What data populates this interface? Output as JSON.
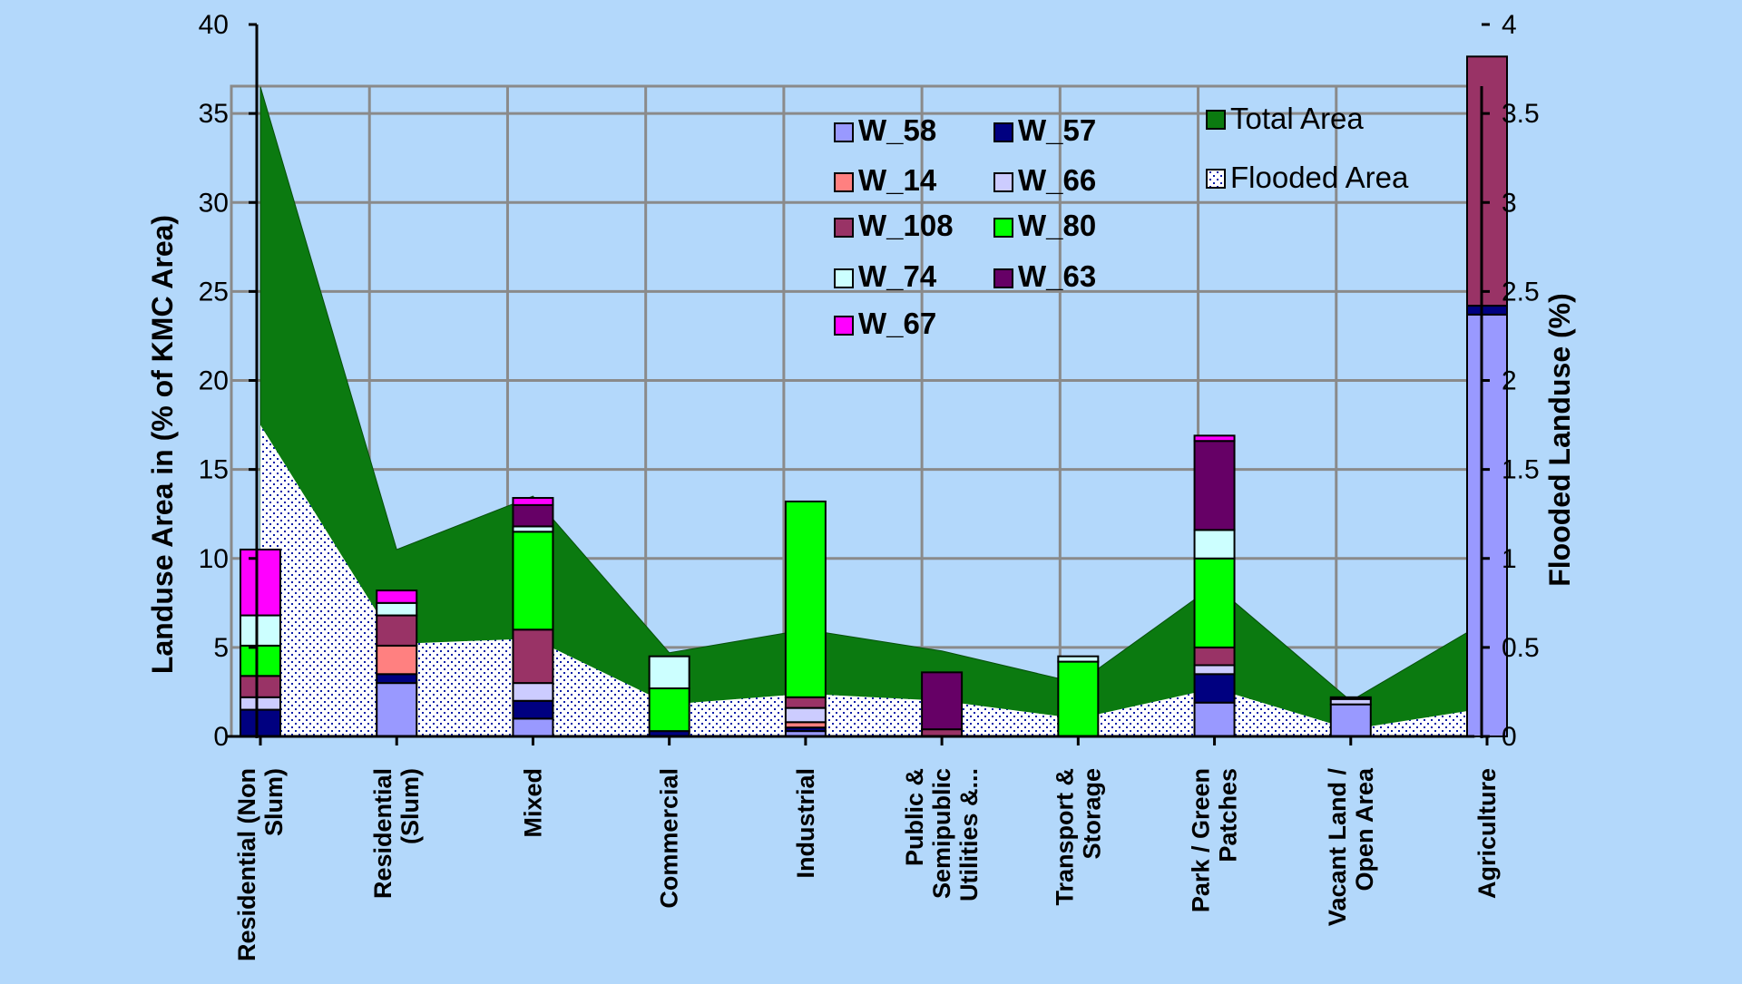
{
  "chart_data": {
    "type": "bar",
    "subtype": "stacked-bar-with-area",
    "title": "",
    "ylabel": "Landuse Area in (% of KMC Area)",
    "y2label": "Flooded Landuse (%)",
    "ylim": [
      0,
      40
    ],
    "y2lim": [
      0,
      4
    ],
    "yticks": [
      "0",
      "5",
      "10",
      "15",
      "20",
      "25",
      "30",
      "35",
      "40"
    ],
    "y2ticks": [
      "0",
      "0.5",
      "1",
      "1.5",
      "2",
      "2.5",
      "3",
      "3.5",
      "4"
    ],
    "grid": true,
    "categories": [
      [
        "Residential (Non",
        "Slum)"
      ],
      [
        "Residential",
        "(Slum)"
      ],
      [
        "Mixed"
      ],
      [
        "Commercial"
      ],
      [
        "Industrial"
      ],
      [
        "Public &",
        "Semipublic",
        "Utilities &..."
      ],
      [
        "Transport &",
        "Storage"
      ],
      [
        "Park / Green",
        "Patches"
      ],
      [
        "Vacant Land /",
        "Open Area"
      ],
      [
        "Agriculture"
      ]
    ],
    "areas": [
      {
        "name": "Total Area",
        "color": "#0b7a10",
        "values": [
          36.5,
          10.5,
          13.5,
          4.7,
          6.0,
          4.8,
          3.0,
          8.5,
          2.0,
          6.5
        ]
      },
      {
        "name": "Flooded Area",
        "color": "#ffffff",
        "dot_color": "#0a1fa8",
        "values": [
          17.5,
          5.2,
          5.5,
          1.8,
          2.4,
          2.0,
          1.0,
          2.7,
          0.4,
          1.6
        ]
      }
    ],
    "series": [
      {
        "name": "W_58",
        "color": "#9999ff",
        "values": [
          0.0,
          0.3,
          0.1,
          0.0,
          0.03,
          0.0,
          0.0,
          0.19,
          0.18,
          2.37
        ]
      },
      {
        "name": "W_57",
        "color": "#000080",
        "values": [
          0.15,
          0.05,
          0.1,
          0.03,
          0.02,
          0.0,
          0.0,
          0.16,
          0.0,
          0.05
        ]
      },
      {
        "name": "W_14",
        "color": "#ff8080",
        "values": [
          0.0,
          0.16,
          0.0,
          0.0,
          0.03,
          0.0,
          0.0,
          0.0,
          0.0,
          0.0
        ]
      },
      {
        "name": "W_66",
        "color": "#ccccff",
        "values": [
          0.07,
          0.0,
          0.1,
          0.0,
          0.08,
          0.0,
          0.0,
          0.05,
          0.03,
          0.0
        ]
      },
      {
        "name": "W_108",
        "color": "#993366",
        "values": [
          0.12,
          0.17,
          0.3,
          0.0,
          0.06,
          0.04,
          0.0,
          0.1,
          0.0,
          1.4
        ]
      },
      {
        "name": "W_80",
        "color": "#00ff00",
        "values": [
          0.17,
          0.0,
          0.55,
          0.24,
          1.1,
          0.0,
          0.42,
          0.5,
          0.0,
          0.0
        ]
      },
      {
        "name": "W_74",
        "color": "#ccffff",
        "values": [
          0.17,
          0.07,
          0.03,
          0.18,
          0.0,
          0.0,
          0.03,
          0.16,
          0.01,
          0.0
        ]
      },
      {
        "name": "W_63",
        "color": "#660066",
        "values": [
          0.0,
          0.0,
          0.12,
          0.0,
          0.0,
          0.32,
          0.0,
          0.5,
          0.0,
          0.0
        ]
      },
      {
        "name": "W_67",
        "color": "#ff00ff",
        "values": [
          0.37,
          0.07,
          0.04,
          0.0,
          0.0,
          0.0,
          0.0,
          0.03,
          0.0,
          0.0
        ]
      }
    ],
    "legend_placement": "top-center"
  }
}
